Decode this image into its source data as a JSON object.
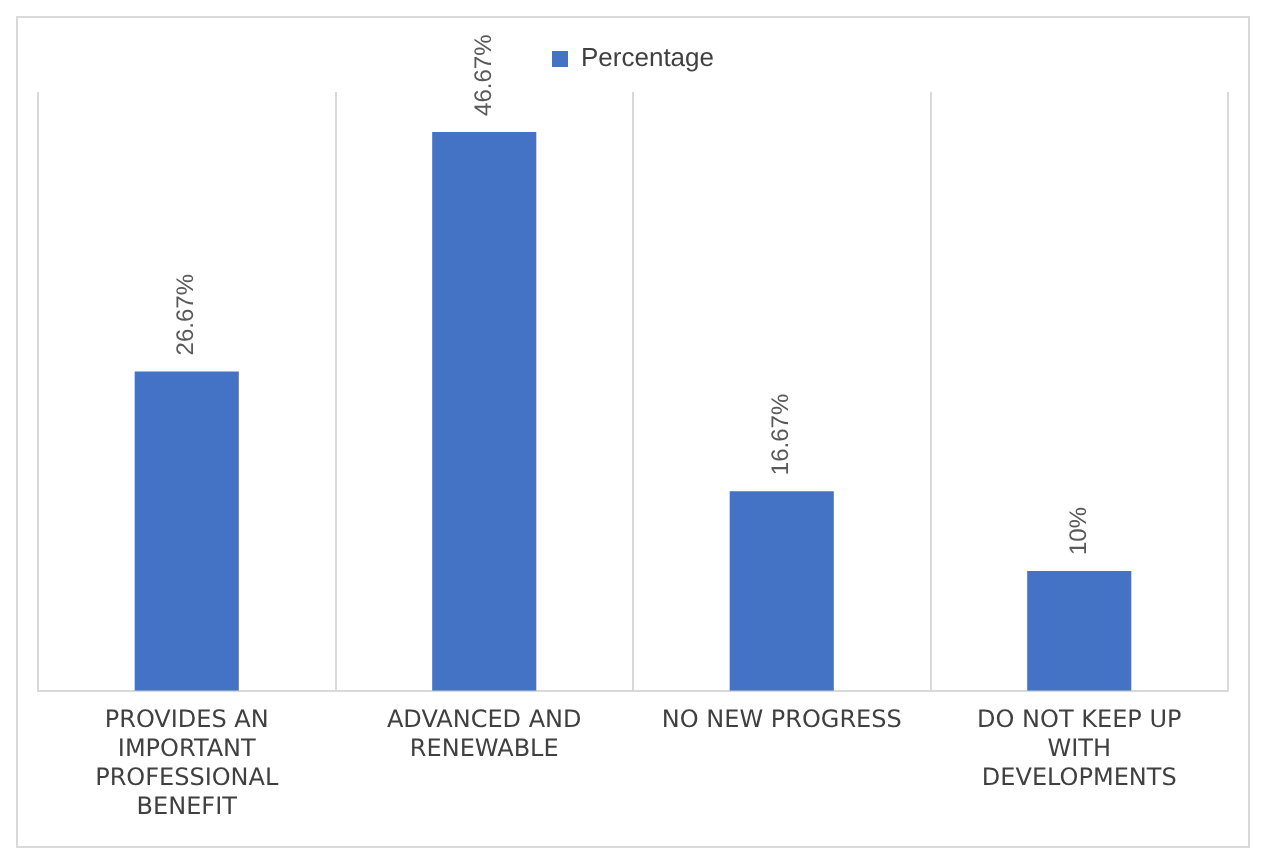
{
  "chart_data": {
    "type": "bar",
    "categories": [
      "PROVIDES AN IMPORTANT PROFESSIONAL BENEFIT",
      "ADVANCED AND RENEWABLE",
      "NO NEW PROGRESS",
      "DO NOT KEEP UP WITH DEVELOPMENTS"
    ],
    "series": [
      {
        "name": "Percentage",
        "color": "#4472c4",
        "values": [
          26.67,
          46.67,
          16.67,
          10
        ],
        "value_labels": [
          "26.67%",
          "46.67%",
          "16.67%",
          "10%"
        ]
      }
    ],
    "legend": "top",
    "grid": "x",
    "tick_labels": "x"
  }
}
